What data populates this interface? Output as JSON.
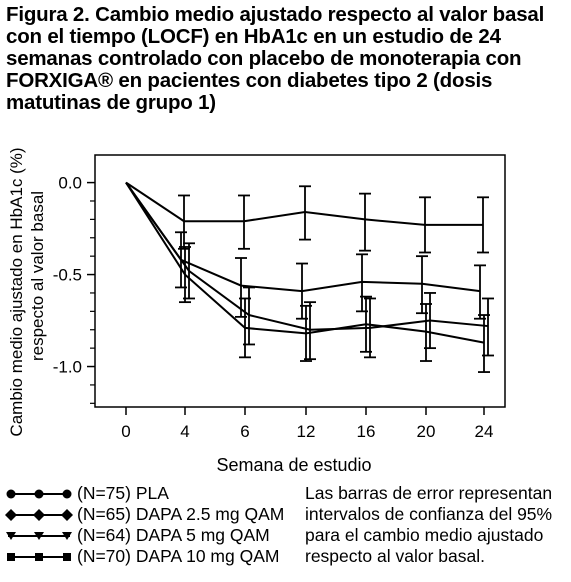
{
  "title_lines": [
    "Figura 2. Cambio medio ajustado respecto al valor basal",
    "con el tiempo (LOCF) en HbA1c en un estudio de 24",
    "semanas controlado con placebo de monoterapia con",
    "FORXIGA® en pacientes con diabetes tipo 2 (dosis",
    "matutinas de grupo 1)"
  ],
  "chart_data": {
    "type": "line",
    "title": "Figura 2. Cambio medio ajustado respecto al valor basal con el tiempo (LOCF) en HbA1c en un estudio de 24 semanas controlado con placebo de monoterapia con FORXIGA® en pacientes con diabetes tipo 2 (dosis matutinas de grupo 1)",
    "xlabel": "Semana de estudio",
    "ylabel_lines": [
      "Cambio medio ajustado en HbA1c (%)",
      "respecto al valor basal"
    ],
    "x": [
      "0",
      "4",
      "6",
      "12",
      "16",
      "20",
      "24"
    ],
    "yticks": [
      "0.0",
      "-0.5",
      "-1.0"
    ],
    "ylim": [
      -1.22,
      0.15
    ],
    "grid": false,
    "error_bars": true,
    "series": [
      {
        "name": "(N=75) PLA",
        "marker": "circle",
        "values": [
          0,
          -0.21,
          -0.21,
          -0.16,
          -0.2,
          -0.23,
          -0.23
        ],
        "ci_low": [
          0,
          -0.36,
          -0.36,
          -0.31,
          -0.37,
          -0.38,
          -0.38
        ],
        "ci_high": [
          0,
          -0.07,
          -0.07,
          -0.02,
          -0.06,
          -0.08,
          -0.08
        ]
      },
      {
        "name": "(N=65) DAPA 2.5 mg QAM",
        "marker": "diamond",
        "values": [
          0,
          -0.42,
          -0.56,
          -0.59,
          -0.54,
          -0.55,
          -0.59
        ],
        "ci_low": [
          0,
          -0.57,
          -0.73,
          -0.74,
          -0.7,
          -0.71,
          -0.74
        ],
        "ci_high": [
          0,
          -0.27,
          -0.41,
          -0.44,
          -0.39,
          -0.4,
          -0.45
        ]
      },
      {
        "name": "(N=64) DAPA 5 mg QAM",
        "marker": "triangle-down",
        "values": [
          0,
          -0.48,
          -0.72,
          -0.8,
          -0.79,
          -0.75,
          -0.78
        ],
        "ci_low": [
          0,
          -0.63,
          -0.88,
          -0.96,
          -0.95,
          -0.9,
          -0.94
        ],
        "ci_high": [
          0,
          -0.33,
          -0.57,
          -0.65,
          -0.63,
          -0.6,
          -0.63
        ]
      },
      {
        "name": "(N=70) DAPA 10 mg QAM",
        "marker": "square",
        "values": [
          0,
          -0.5,
          -0.79,
          -0.82,
          -0.77,
          -0.81,
          -0.87
        ],
        "ci_low": [
          0,
          -0.65,
          -0.95,
          -0.97,
          -0.92,
          -0.97,
          -1.03
        ],
        "ci_high": [
          0,
          -0.35,
          -0.63,
          -0.67,
          -0.62,
          -0.66,
          -0.72
        ]
      }
    ],
    "legend_position": "bottom-left"
  },
  "note_lines": [
    "Las barras de error representan",
    "intervalos de confianza del 95%",
    "para el cambio medio ajustado",
    "respecto al valor basal."
  ]
}
